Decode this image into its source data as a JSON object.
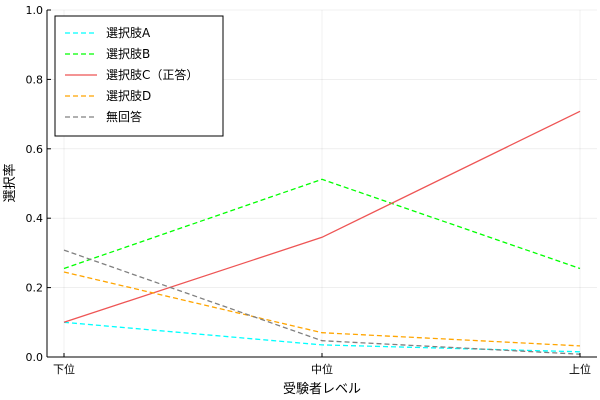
{
  "chart_data": {
    "type": "line",
    "title": "",
    "xlabel": "受験者レベル",
    "ylabel": "選択率",
    "categories": [
      "下位",
      "中位",
      "上位"
    ],
    "ylim": [
      0,
      1
    ],
    "yticks": [
      "0.0",
      "0.2",
      "0.4",
      "0.6",
      "0.8",
      "1.0"
    ],
    "grid": true,
    "legend_position": "top-left",
    "series": [
      {
        "name": "選択肢A",
        "values": [
          0.1,
          0.035,
          0.015
        ],
        "color": "#00ffff",
        "dash": "dashed"
      },
      {
        "name": "選択肢B",
        "values": [
          0.255,
          0.512,
          0.255
        ],
        "color": "#00ff00",
        "dash": "dashed"
      },
      {
        "name": "選択肢C（正答）",
        "values": [
          0.1,
          0.345,
          0.708
        ],
        "color": "#ee5555",
        "dash": "solid"
      },
      {
        "name": "選択肢D",
        "values": [
          0.245,
          0.07,
          0.032
        ],
        "color": "#ffa500",
        "dash": "dashed"
      },
      {
        "name": "無回答",
        "values": [
          0.308,
          0.047,
          0.008
        ],
        "color": "#808080",
        "dash": "dashed"
      }
    ]
  }
}
